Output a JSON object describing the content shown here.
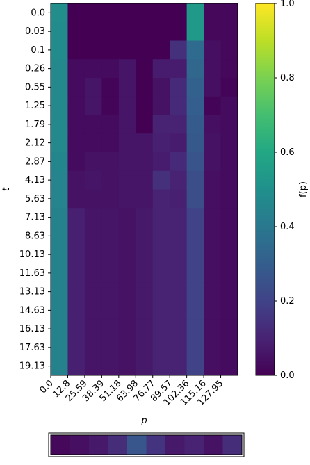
{
  "chart_data": {
    "type": "heatmap",
    "xlabel": "p",
    "ylabel": "t",
    "colorbar_label": "f(p)",
    "colormap": "viridis",
    "vmin": 0.0,
    "vmax": 1.0,
    "colorbar_ticks": [
      "0.0",
      "0.2",
      "0.4",
      "0.6",
      "0.8",
      "1.0"
    ],
    "x_ticks": [
      "0.0",
      "12.8",
      "25.59",
      "38.39",
      "51.18",
      "63.98",
      "76.77",
      "89.57",
      "102.36",
      "115.16",
      "127.95"
    ],
    "y_ticks": [
      "0.0",
      "0.03",
      "0.1",
      "0.26",
      "0.55",
      "1.25",
      "1.79",
      "2.12",
      "2.87",
      "4.13",
      "5.63",
      "7.13",
      "8.63",
      "10.13",
      "11.63",
      "13.13",
      "14.63",
      "16.13",
      "17.63",
      "19.13"
    ],
    "values": [
      [
        0.49,
        0.0,
        0.0,
        0.0,
        0.0,
        0.0,
        0.0,
        0.0,
        0.54,
        0.02,
        0.02
      ],
      [
        0.48,
        0.0,
        0.0,
        0.0,
        0.0,
        0.0,
        0.0,
        0.0,
        0.54,
        0.02,
        0.02
      ],
      [
        0.48,
        0.0,
        0.0,
        0.0,
        0.0,
        0.0,
        0.0,
        0.14,
        0.35,
        0.04,
        0.02
      ],
      [
        0.47,
        0.03,
        0.03,
        0.03,
        0.06,
        0.0,
        0.08,
        0.08,
        0.33,
        0.04,
        0.02
      ],
      [
        0.47,
        0.03,
        0.06,
        0.01,
        0.06,
        0.0,
        0.05,
        0.12,
        0.31,
        0.04,
        0.01
      ],
      [
        0.47,
        0.03,
        0.06,
        0.01,
        0.06,
        0.0,
        0.05,
        0.12,
        0.3,
        0.01,
        0.03
      ],
      [
        0.47,
        0.03,
        0.03,
        0.03,
        0.06,
        0.0,
        0.1,
        0.1,
        0.29,
        0.04,
        0.03
      ],
      [
        0.47,
        0.03,
        0.03,
        0.03,
        0.06,
        0.06,
        0.09,
        0.08,
        0.28,
        0.05,
        0.03
      ],
      [
        0.46,
        0.03,
        0.05,
        0.05,
        0.06,
        0.06,
        0.08,
        0.12,
        0.26,
        0.05,
        0.03
      ],
      [
        0.45,
        0.05,
        0.06,
        0.05,
        0.06,
        0.06,
        0.14,
        0.1,
        0.24,
        0.04,
        0.03
      ],
      [
        0.45,
        0.05,
        0.05,
        0.05,
        0.06,
        0.06,
        0.1,
        0.09,
        0.24,
        0.04,
        0.03
      ],
      [
        0.44,
        0.09,
        0.06,
        0.06,
        0.05,
        0.07,
        0.1,
        0.1,
        0.2,
        0.04,
        0.03
      ],
      [
        0.44,
        0.09,
        0.06,
        0.06,
        0.05,
        0.07,
        0.1,
        0.1,
        0.2,
        0.04,
        0.03
      ],
      [
        0.44,
        0.09,
        0.06,
        0.06,
        0.05,
        0.07,
        0.1,
        0.1,
        0.2,
        0.04,
        0.03
      ],
      [
        0.44,
        0.09,
        0.06,
        0.06,
        0.05,
        0.07,
        0.1,
        0.1,
        0.2,
        0.04,
        0.03
      ],
      [
        0.44,
        0.09,
        0.06,
        0.06,
        0.05,
        0.07,
        0.1,
        0.1,
        0.2,
        0.04,
        0.03
      ],
      [
        0.44,
        0.09,
        0.06,
        0.06,
        0.05,
        0.07,
        0.1,
        0.1,
        0.2,
        0.04,
        0.03
      ],
      [
        0.44,
        0.09,
        0.06,
        0.06,
        0.05,
        0.07,
        0.1,
        0.1,
        0.2,
        0.04,
        0.03
      ],
      [
        0.44,
        0.09,
        0.06,
        0.06,
        0.05,
        0.07,
        0.1,
        0.1,
        0.2,
        0.04,
        0.03
      ],
      [
        0.44,
        0.09,
        0.06,
        0.06,
        0.05,
        0.07,
        0.1,
        0.1,
        0.2,
        0.04,
        0.03
      ]
    ],
    "bottom_strip_values": [
      0.02,
      0.04,
      0.07,
      0.13,
      0.27,
      0.15,
      0.07,
      0.1,
      0.05,
      0.13
    ]
  }
}
